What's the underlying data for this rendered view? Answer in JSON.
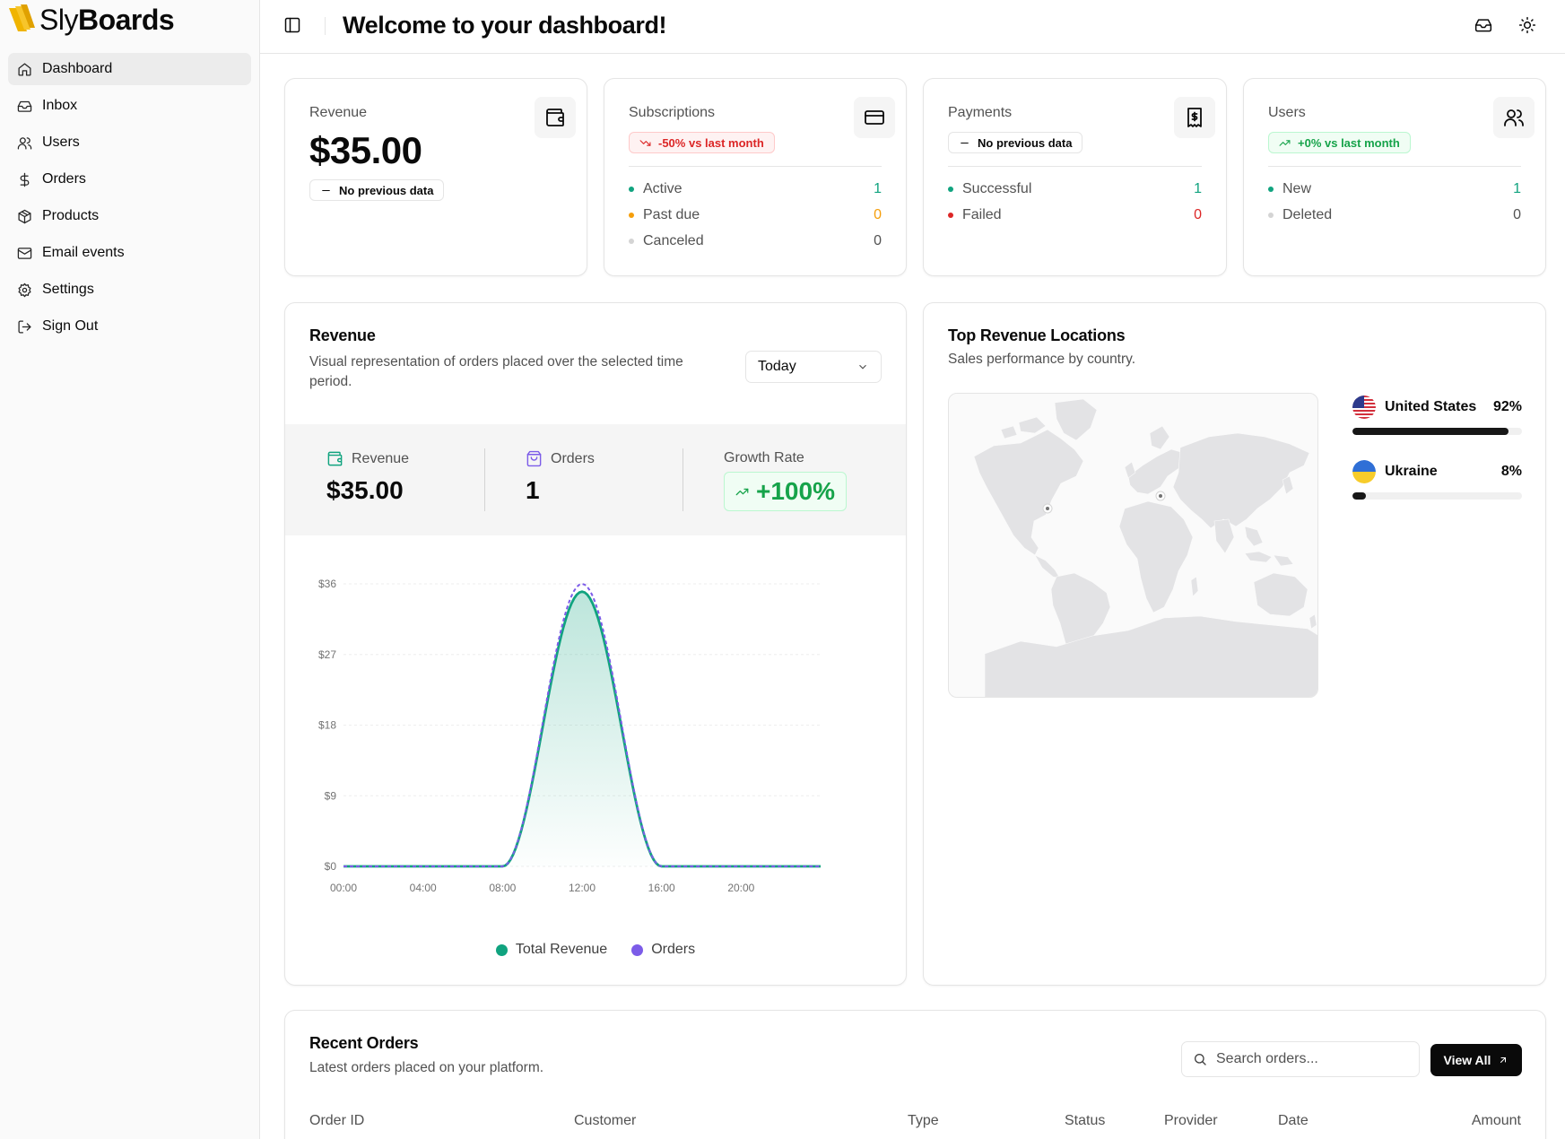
{
  "brand": {
    "sly": "Sly",
    "boards": "Boards"
  },
  "sidebar": {
    "items": [
      {
        "label": "Dashboard",
        "icon": "home-icon"
      },
      {
        "label": "Inbox",
        "icon": "inbox-icon"
      },
      {
        "label": "Users",
        "icon": "users-icon"
      },
      {
        "label": "Orders",
        "icon": "dollar-icon"
      },
      {
        "label": "Products",
        "icon": "package-icon"
      },
      {
        "label": "Email events",
        "icon": "mail-icon"
      },
      {
        "label": "Settings",
        "icon": "gear-icon"
      },
      {
        "label": "Sign Out",
        "icon": "log-out-icon"
      }
    ],
    "active": "Dashboard"
  },
  "header": {
    "title": "Welcome to your dashboard!"
  },
  "stats": {
    "revenue": {
      "label": "Revenue",
      "value": "$35.00",
      "badge": "No previous data"
    },
    "subscriptions": {
      "label": "Subscriptions",
      "badge": "-50% vs last month",
      "rows": [
        {
          "label": "Active",
          "value": "1"
        },
        {
          "label": "Past due",
          "value": "0"
        },
        {
          "label": "Canceled",
          "value": "0"
        }
      ]
    },
    "payments": {
      "label": "Payments",
      "badge": "No previous data",
      "rows": [
        {
          "label": "Successful",
          "value": "1"
        },
        {
          "label": "Failed",
          "value": "0"
        }
      ]
    },
    "users": {
      "label": "Users",
      "badge": "+0% vs last month",
      "rows": [
        {
          "label": "New",
          "value": "1"
        },
        {
          "label": "Deleted",
          "value": "0"
        }
      ]
    }
  },
  "revenue_chart": {
    "title": "Revenue",
    "description": "Visual representation of orders placed over the selected time period.",
    "period": "Today",
    "metrics": {
      "revenue_label": "Revenue",
      "revenue_value": "$35.00",
      "orders_label": "Orders",
      "orders_value": "1",
      "growth_label": "Growth Rate",
      "growth_value": "+100%"
    },
    "legend": [
      "Total Revenue",
      "Orders"
    ]
  },
  "chart_data": {
    "type": "area",
    "x": [
      "00:00",
      "04:00",
      "08:00",
      "12:00",
      "16:00",
      "20:00"
    ],
    "series": [
      {
        "name": "Total Revenue",
        "color": "#10a37f",
        "points": [
          [
            0,
            0
          ],
          [
            8,
            0
          ],
          [
            12,
            35
          ],
          [
            16,
            0
          ],
          [
            24,
            0
          ]
        ]
      },
      {
        "name": "Orders",
        "color": "#7c5ce8",
        "points": [
          [
            0,
            0
          ],
          [
            8,
            0
          ],
          [
            12,
            36
          ],
          [
            16,
            0
          ],
          [
            24,
            0
          ]
        ]
      }
    ],
    "yticks": [
      "$0",
      "$9",
      "$18",
      "$27",
      "$36"
    ],
    "ylim": [
      0,
      36
    ],
    "xlim": [
      0,
      24
    ],
    "grid": true
  },
  "locations": {
    "title": "Top Revenue Locations",
    "description": "Sales performance by country.",
    "countries": [
      {
        "name": "United States",
        "percent": "92%",
        "share": 0.92
      },
      {
        "name": "Ukraine",
        "percent": "8%",
        "share": 0.08
      }
    ]
  },
  "recent_orders": {
    "title": "Recent Orders",
    "description": "Latest orders placed on your platform.",
    "search_placeholder": "Search orders...",
    "view_all": "View All",
    "columns": [
      "Order ID",
      "Customer",
      "Type",
      "Status",
      "Provider",
      "Date",
      "Amount"
    ]
  },
  "colors": {
    "accent_green": "#10a37f",
    "accent_purple": "#7c5ce8",
    "negative": "#dc2626",
    "warning": "#f59e0b"
  }
}
